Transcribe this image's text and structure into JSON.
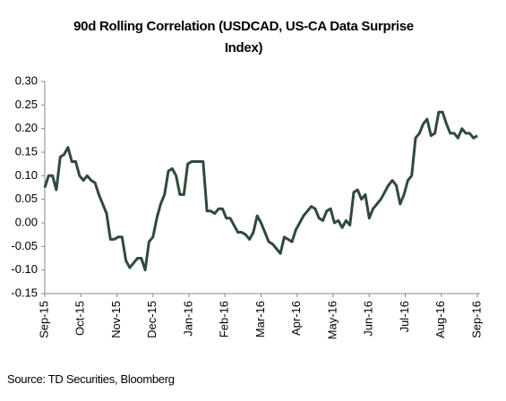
{
  "chart_data": {
    "type": "line",
    "title": "90d Rolling Correlation (USDCAD, US-CA Data Surprise Index)",
    "source": "Source: TD Securities, Bloomberg",
    "xtick_labels": [
      "Sep-15",
      "Oct-15",
      "Nov-15",
      "Dec-15",
      "Jan-16",
      "Feb-16",
      "Mar-16",
      "Apr-16",
      "May-16",
      "Jun-16",
      "Jul-16",
      "Aug-16",
      "Sep-16"
    ],
    "color": "#2e4a3c",
    "values": [
      0.075,
      0.1,
      0.1,
      0.07,
      0.14,
      0.145,
      0.16,
      0.13,
      0.13,
      0.1,
      0.09,
      0.1,
      0.09,
      0.085,
      0.06,
      0.04,
      0.02,
      -0.035,
      -0.035,
      -0.03,
      -0.03,
      -0.08,
      -0.095,
      -0.085,
      -0.075,
      -0.075,
      -0.1,
      -0.04,
      -0.03,
      0.01,
      0.04,
      0.06,
      0.11,
      0.115,
      0.1,
      0.06,
      0.06,
      0.125,
      0.13,
      0.13,
      0.13,
      0.13,
      0.025,
      0.025,
      0.02,
      0.03,
      0.03,
      0.01,
      0.01,
      -0.005,
      -0.02,
      -0.02,
      -0.025,
      -0.035,
      -0.02,
      0.015,
      0,
      -0.02,
      -0.04,
      -0.045,
      -0.055,
      -0.065,
      -0.03,
      -0.035,
      -0.04,
      -0.015,
      0,
      0.015,
      0.025,
      0.035,
      0.03,
      0.01,
      0.005,
      0.025,
      0.03,
      0,
      0.005,
      -0.01,
      0.005,
      -0.005,
      0.065,
      0.07,
      0.05,
      0.06,
      0.01,
      0.03,
      0.04,
      0.05,
      0.065,
      0.08,
      0.09,
      0.08,
      0.04,
      0.06,
      0.09,
      0.1,
      0.18,
      0.19,
      0.21,
      0.22,
      0.185,
      0.19,
      0.235,
      0.235,
      0.21,
      0.19,
      0.19,
      0.18,
      0.2,
      0.19,
      0.19,
      0.18,
      0.185
    ],
    "ylim": [
      -0.15,
      0.3
    ],
    "yticks": [
      {
        "value": 0.3,
        "label": "0.30"
      },
      0.25,
      {
        "value": 0.2,
        "label": "0.20"
      },
      0.15,
      {
        "value": 0.1,
        "label": "0.10"
      },
      0.05,
      {
        "value": 0,
        "label": "0.00"
      },
      -0.05,
      {
        "value": -0.1,
        "label": "-0.10"
      },
      -0.15
    ]
  }
}
